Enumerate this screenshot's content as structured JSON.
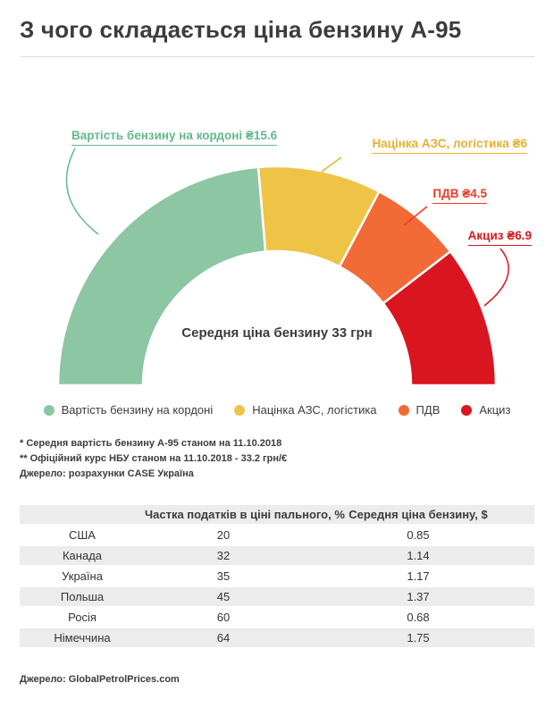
{
  "page": {
    "title": "З чого складається ціна бензину А-95"
  },
  "chart_data": {
    "type": "pie",
    "variant": "half-donut",
    "title": "З чого складається ціна бензину А-95",
    "center_label": "Середня ціна бензину 33 грн",
    "total_value": 33,
    "unit": "грн",
    "segments": [
      {
        "id": "border-cost",
        "label": "Вартість бензину на кордоні",
        "value": 15.6,
        "callout": "Вартість бензину на кордоні ₴15.6",
        "color": "#8cc6a2",
        "label_color": "#62b98c"
      },
      {
        "id": "station-markup",
        "label": "Націнка АЗС, логістика",
        "value": 6,
        "callout": "Націнка АЗС, логістика ₴6",
        "color": "#efc446",
        "label_color": "#e5b12f"
      },
      {
        "id": "vat",
        "label": "ПДВ",
        "value": 4.5,
        "callout": "ПДВ ₴4.5",
        "color": "#f26a36",
        "label_color": "#ef3b24"
      },
      {
        "id": "excise",
        "label": "Акциз",
        "value": 6.9,
        "callout": "Акциз ₴6.9",
        "color": "#d9161f",
        "label_color": "#d9161f"
      }
    ]
  },
  "footnotes": [
    "* Середня вартість бензину А-95 станом на 11.10.2018",
    "** Офіційний курс НБУ станом на 11.10.2018 - 33.2 грн/€",
    "Джерело: розрахунки CASE Україна"
  ],
  "table": {
    "headers": [
      "",
      "Частка податків в ціні пального, %",
      "Середня ціна бензину, $"
    ],
    "rows": [
      {
        "country": "США",
        "tax_share": "20",
        "price": "0.85"
      },
      {
        "country": "Канада",
        "tax_share": "32",
        "price": "1.14"
      },
      {
        "country": "Україна",
        "tax_share": "35",
        "price": "1.17"
      },
      {
        "country": "Польша",
        "tax_share": "45",
        "price": "1.37"
      },
      {
        "country": "Росія",
        "tax_share": "60",
        "price": "0.68"
      },
      {
        "country": "Німеччина",
        "tax_share": "64",
        "price": "1.75"
      }
    ]
  },
  "source": "Джерело: GlobalPetrolPrices.com"
}
